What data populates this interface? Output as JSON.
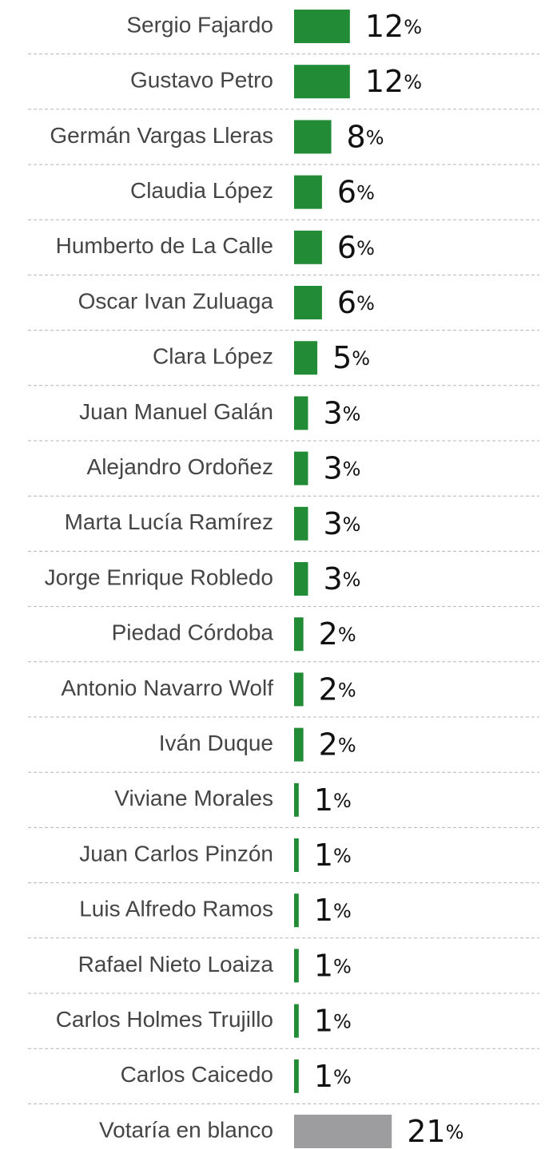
{
  "chart_data": {
    "type": "bar",
    "orientation": "horizontal",
    "categories": [
      "Sergio Fajardo",
      "Gustavo Petro",
      "Germán Vargas Lleras",
      "Claudia López",
      "Humberto de La Calle",
      "Oscar Ivan Zuluaga",
      "Clara López",
      "Juan Manuel Galán",
      "Alejandro Ordoñez",
      "Marta Lucía Ramírez",
      "Jorge Enrique Robledo",
      "Piedad Córdoba",
      "Antonio Navarro Wolf",
      "Iván Duque",
      "Viviane Morales",
      "Juan Carlos Pinzón",
      "Luis Alfredo Ramos",
      "Rafael Nieto Loaiza",
      "Carlos Holmes Trujillo",
      "Carlos Caicedo",
      "Votaría en blanco"
    ],
    "values": [
      12,
      12,
      8,
      6,
      6,
      6,
      5,
      3,
      3,
      3,
      3,
      2,
      2,
      2,
      1,
      1,
      1,
      1,
      1,
      1,
      21
    ],
    "value_labels": [
      "12%",
      "12%",
      "8%",
      "6%",
      "6%",
      "6%",
      "5%",
      "3%",
      "3%",
      "3%",
      "3%",
      "2%",
      "2%",
      "2%",
      "1%",
      "1%",
      "1%",
      "1%",
      "1%",
      "1%",
      "21%"
    ],
    "colors": [
      "#228b35",
      "#228b35",
      "#228b35",
      "#228b35",
      "#228b35",
      "#228b35",
      "#228b35",
      "#228b35",
      "#228b35",
      "#228b35",
      "#228b35",
      "#228b35",
      "#228b35",
      "#228b35",
      "#228b35",
      "#228b35",
      "#228b35",
      "#228b35",
      "#228b35",
      "#228b35",
      "#9d9d9f"
    ]
  }
}
